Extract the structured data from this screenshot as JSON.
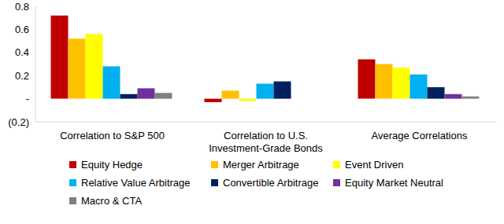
{
  "chart_data": {
    "type": "bar",
    "categories": [
      "Correlation to S&P 500",
      "Correlation to U.S. Investment-Grade Bonds",
      "Average Correlations"
    ],
    "series": [
      {
        "name": "Equity Hedge",
        "color": "#c00000",
        "values": [
          0.72,
          -0.03,
          0.34
        ]
      },
      {
        "name": "Merger Arbitrage",
        "color": "#ffc000",
        "values": [
          0.52,
          0.07,
          0.3
        ]
      },
      {
        "name": "Event Driven",
        "color": "#ffff00",
        "values": [
          0.56,
          -0.02,
          0.27
        ]
      },
      {
        "name": "Relative Value Arbitrage",
        "color": "#00b0f0",
        "values": [
          0.28,
          0.13,
          0.21
        ]
      },
      {
        "name": "Convertible Arbitrage",
        "color": "#002060",
        "values": [
          0.04,
          0.15,
          0.1
        ]
      },
      {
        "name": "Equity Market Neutral",
        "color": "#7030a0",
        "values": [
          0.09,
          0,
          0.04
        ]
      },
      {
        "name": "Macro & CTA",
        "color": "#808080",
        "values": [
          0.05,
          0,
          0.02
        ]
      }
    ],
    "ylim": [
      -0.2,
      0.8
    ],
    "yticks": [
      {
        "value": -0.2,
        "label": "(0.2)"
      },
      {
        "value": 0,
        "label": "-"
      },
      0.2,
      0.4,
      0.6,
      0.8
    ],
    "grid": false,
    "legend": "bottom"
  }
}
